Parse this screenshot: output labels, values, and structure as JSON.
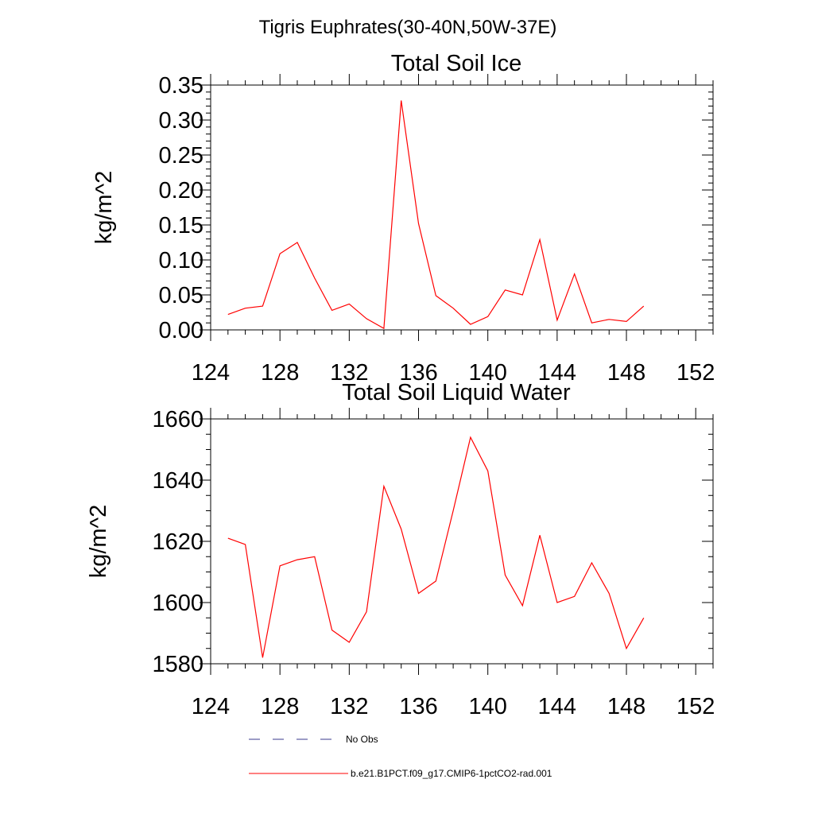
{
  "figure": {
    "suptitle": "Tigris Euphrates(30-40N,50W-37E)"
  },
  "chart_data": [
    {
      "type": "line",
      "title": "Total Soil Ice",
      "xlabel": "",
      "ylabel": "kg/m^2",
      "xlim": [
        124,
        153
      ],
      "ylim": [
        0,
        0.35
      ],
      "xticks": [
        "124",
        "128",
        "132",
        "136",
        "140",
        "144",
        "148",
        "152"
      ],
      "yticks": [
        "0.00",
        "0.05",
        "0.10",
        "0.15",
        "0.20",
        "0.25",
        "0.30",
        "0.35"
      ],
      "series": [
        {
          "name": "b.e21.B1PCT.f09_g17.CMIP6-1pctCO2-rad.001",
          "color": "#ff0000",
          "x": [
            125,
            126,
            127,
            128,
            129,
            130,
            131,
            132,
            133,
            134,
            135,
            136,
            137,
            138,
            139,
            140,
            141,
            142,
            143,
            144,
            145,
            146,
            147,
            148,
            149
          ],
          "y": [
            0.022,
            0.031,
            0.034,
            0.109,
            0.125,
            0.074,
            0.028,
            0.037,
            0.016,
            0.002,
            0.328,
            0.152,
            0.049,
            0.031,
            0.008,
            0.019,
            0.057,
            0.05,
            0.129,
            0.014,
            0.08,
            0.01,
            0.015,
            0.012,
            0.034
          ]
        }
      ]
    },
    {
      "type": "line",
      "title": "Total Soil Liquid Water",
      "xlabel": "",
      "ylabel": "kg/m^2",
      "xlim": [
        124,
        153
      ],
      "ylim": [
        1580,
        1660
      ],
      "xticks": [
        "124",
        "128",
        "132",
        "136",
        "140",
        "144",
        "148",
        "152"
      ],
      "yticks": [
        "1580",
        "1600",
        "1620",
        "1640",
        "1660"
      ],
      "series": [
        {
          "name": "b.e21.B1PCT.f09_g17.CMIP6-1pctCO2-rad.001",
          "color": "#ff0000",
          "x": [
            125,
            126,
            127,
            128,
            129,
            130,
            131,
            132,
            133,
            134,
            135,
            136,
            137,
            138,
            139,
            140,
            141,
            142,
            143,
            144,
            145,
            146,
            147,
            148,
            149
          ],
          "y": [
            1621,
            1619,
            1582,
            1612,
            1614,
            1615,
            1591,
            1587,
            1597,
            1638,
            1624,
            1603,
            1607,
            1630,
            1654,
            1643,
            1609,
            1599,
            1622,
            1600,
            1602,
            1613,
            1603,
            1585,
            1595
          ]
        }
      ]
    }
  ],
  "legend": [
    {
      "label": "No Obs",
      "style": "dashed",
      "color": "#3a3a8c"
    },
    {
      "label": "b.e21.B1PCT.f09_g17.CMIP6-1pctCO2-rad.001",
      "style": "solid",
      "color": "#ff0000"
    }
  ]
}
